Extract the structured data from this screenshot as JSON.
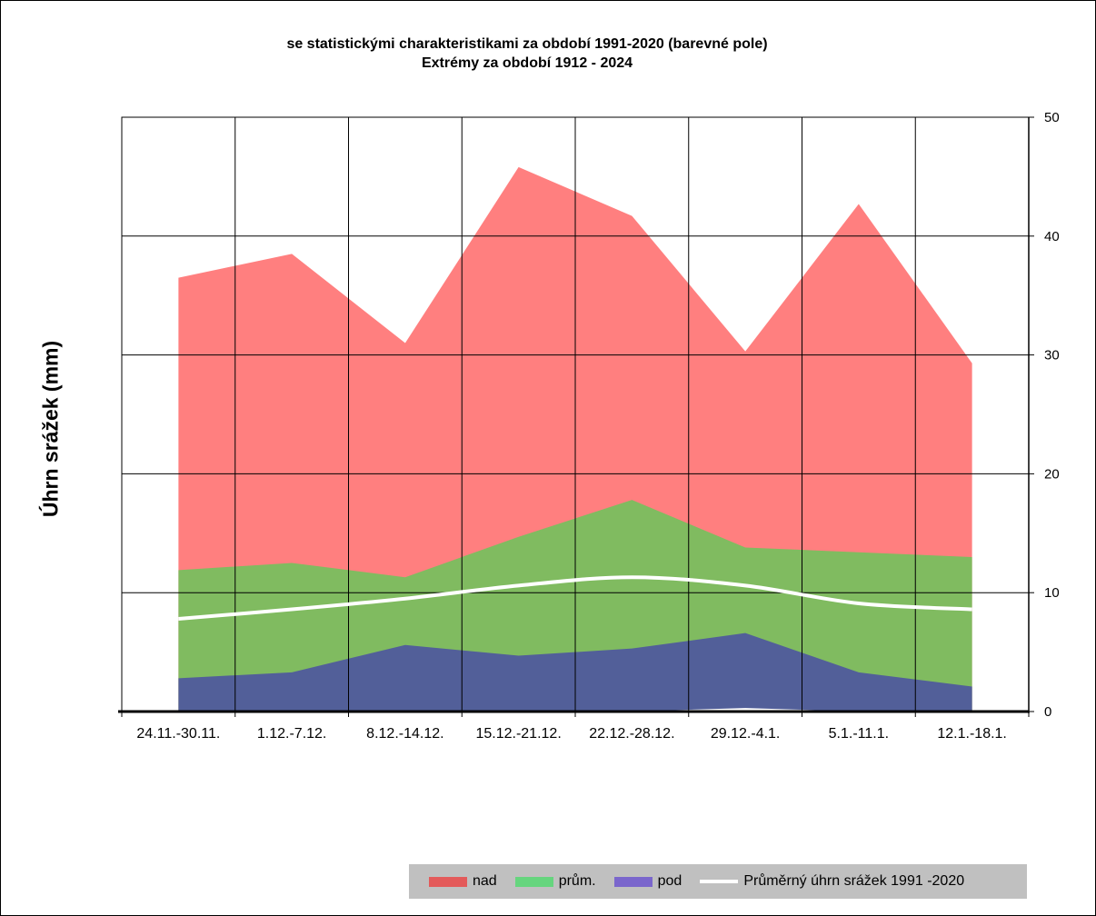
{
  "title_line1": "se statistickými charakteristikami za období 1991-2020 (barevné pole)",
  "title_line2": "Extrémy za období 1912 - 2024",
  "colors": {
    "nad": "#ff7f7f",
    "prum": "#80bb60",
    "pod": "#525f99",
    "line": "#ffffff",
    "legend_nad": "#e35a5a",
    "legend_prum": "#66d57e",
    "legend_pod": "#7a66cc"
  },
  "chart_data": {
    "type": "area",
    "ylabel": "Úhrn srážek (mm)",
    "xlabel": "",
    "ylim": [
      0,
      50
    ],
    "y_ticks": [
      "0",
      "10",
      "20",
      "30",
      "40",
      "50"
    ],
    "y_axis_side": "right",
    "grid": true,
    "legend_position": "bottom-right",
    "categories": [
      "24.11.-30.11.",
      "1.12.-7.12.",
      "8.12.-14.12.",
      "15.12.-21.12.",
      "22.12.-28.12.",
      "29.12.-4.1.",
      "5.1.-11.1.",
      "12.1.-18.1."
    ],
    "series": [
      {
        "name": "nad",
        "values": [
          36.5,
          38.5,
          31.0,
          45.8,
          41.7,
          30.3,
          42.7,
          29.3
        ]
      },
      {
        "name": "prům.",
        "values": [
          11.9,
          12.5,
          11.3,
          14.7,
          17.8,
          13.8,
          13.4,
          13.0
        ]
      },
      {
        "name": "pod",
        "values": [
          2.8,
          3.3,
          5.6,
          4.7,
          5.3,
          6.6,
          3.3,
          2.1
        ]
      },
      {
        "name": "Průměrný úhrn srážek 1991 -2020",
        "values": [
          7.8,
          8.6,
          9.5,
          10.6,
          11.3,
          10.6,
          9.1,
          8.6
        ]
      }
    ],
    "minimum_values": [
      0.0,
      0.0,
      0.0,
      0.0,
      0.0,
      0.3,
      0.0,
      0.0
    ]
  }
}
